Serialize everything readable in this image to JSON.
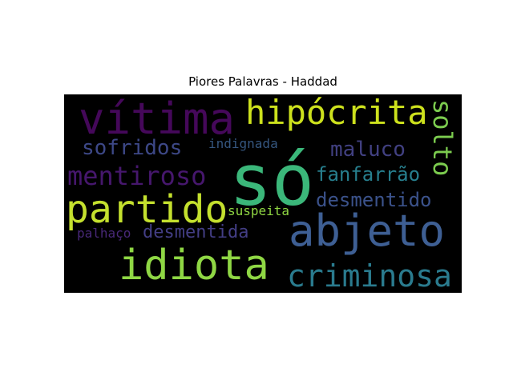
{
  "title": "Piores Palavras - Haddad",
  "words": [
    {
      "text": "só",
      "color": "#3bb77a"
    },
    {
      "text": "vítima",
      "color": "#45085a"
    },
    {
      "text": "hipócrita",
      "color": "#cde11d"
    },
    {
      "text": "solto",
      "color": "#7ccc4f"
    },
    {
      "text": "abjeto",
      "color": "#3e5f94"
    },
    {
      "text": "partido",
      "color": "#c4e02e"
    },
    {
      "text": "idiota",
      "color": "#8fd744"
    },
    {
      "text": "mentiroso",
      "color": "#46176d"
    },
    {
      "text": "sofridos",
      "color": "#3d4887"
    },
    {
      "text": "indignada",
      "color": "#35567f"
    },
    {
      "text": "maluco",
      "color": "#414081"
    },
    {
      "text": "fanfarrão",
      "color": "#277f8e"
    },
    {
      "text": "desmentido",
      "color": "#3b528b"
    },
    {
      "text": "suspeita",
      "color": "#90d743"
    },
    {
      "text": "palhaço",
      "color": "#482878"
    },
    {
      "text": "desmentida",
      "color": "#433e85"
    },
    {
      "text": "criminosa",
      "color": "#2a7b8e"
    }
  ]
}
